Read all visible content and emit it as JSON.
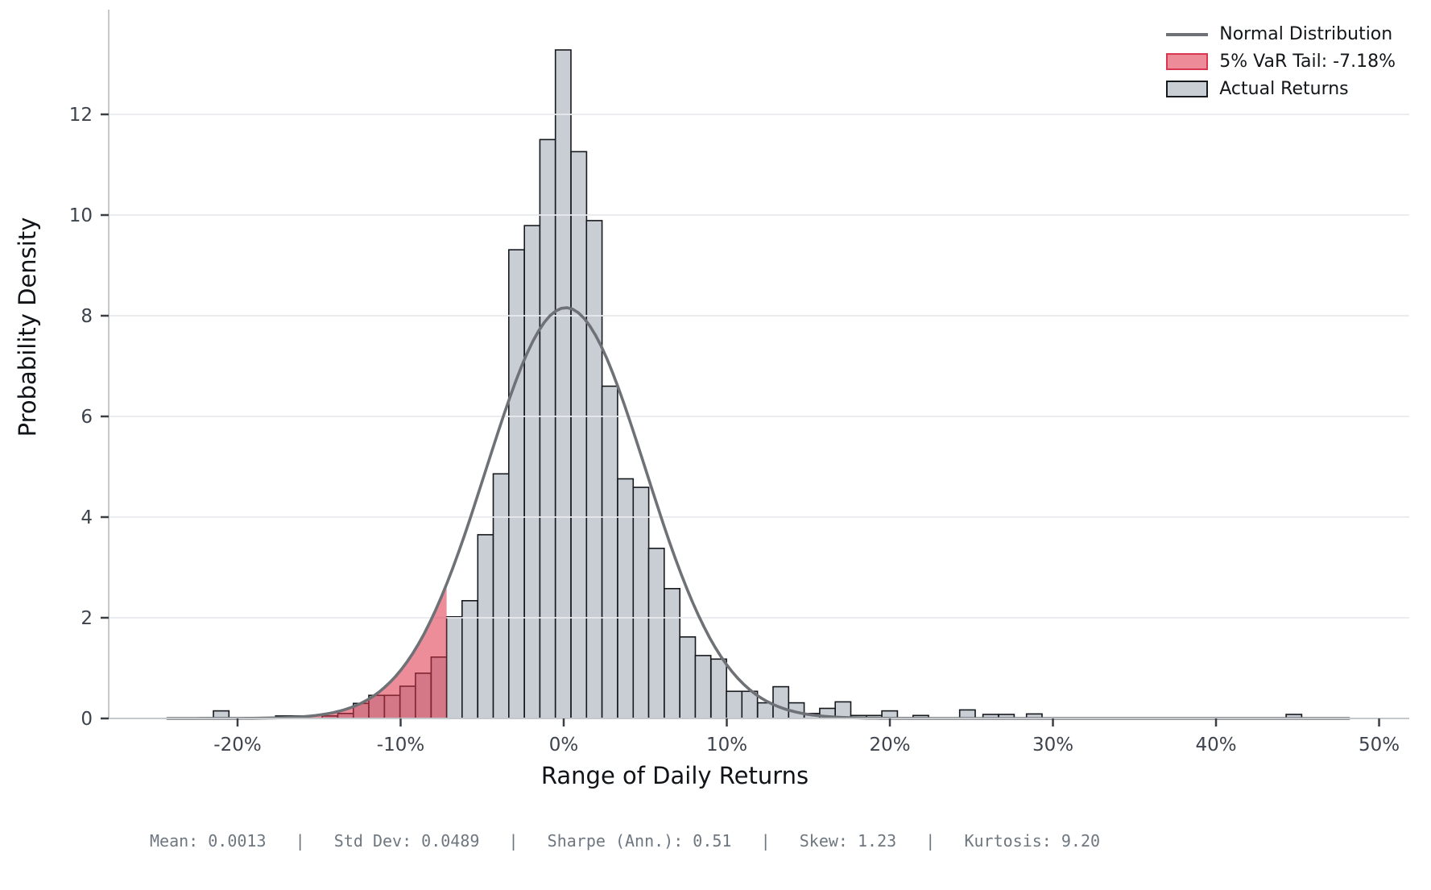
{
  "chart_data": {
    "type": "bar",
    "subtype": "histogram-with-normal-overlay",
    "xlabel": "Range of Daily Returns",
    "ylabel": "Probability Density",
    "x_unit": "percent",
    "xlim": [
      -27.9,
      51.85
    ],
    "ylim": [
      0,
      14.08
    ],
    "grid": "horizontal-only",
    "x_ticks": [
      {
        "value": -20,
        "label": "-20%"
      },
      {
        "value": -10,
        "label": "-10%"
      },
      {
        "value": 0,
        "label": "0%"
      },
      {
        "value": 10,
        "label": "10%"
      },
      {
        "value": 20,
        "label": "20%"
      },
      {
        "value": 30,
        "label": "30%"
      },
      {
        "value": 40,
        "label": "40%"
      },
      {
        "value": 50,
        "label": "50%"
      }
    ],
    "y_ticks": [
      {
        "value": 0,
        "label": "0"
      },
      {
        "value": 2,
        "label": "2"
      },
      {
        "value": 4,
        "label": "4"
      },
      {
        "value": 6,
        "label": "6"
      },
      {
        "value": 8,
        "label": "8"
      },
      {
        "value": 10,
        "label": "10"
      },
      {
        "value": 12,
        "label": "12"
      }
    ],
    "histogram": {
      "bin_width_pct": 0.953,
      "bars": [
        {
          "x": -21.48,
          "h": 0.15
        },
        {
          "x": -17.67,
          "h": 0.05
        },
        {
          "x": -16.71,
          "h": 0.05
        },
        {
          "x": -14.81,
          "h": 0.05
        },
        {
          "x": -13.85,
          "h": 0.1
        },
        {
          "x": -12.9,
          "h": 0.3
        },
        {
          "x": -11.95,
          "h": 0.46
        },
        {
          "x": -10.99,
          "h": 0.46
        },
        {
          "x": -10.04,
          "h": 0.64
        },
        {
          "x": -9.09,
          "h": 0.9
        },
        {
          "x": -8.13,
          "h": 1.22
        },
        {
          "x": -7.18,
          "h": 2.02
        },
        {
          "x": -6.23,
          "h": 2.34
        },
        {
          "x": -5.27,
          "h": 3.65
        },
        {
          "x": -4.32,
          "h": 4.86
        },
        {
          "x": -3.37,
          "h": 9.31
        },
        {
          "x": -2.41,
          "h": 9.79
        },
        {
          "x": -1.46,
          "h": 11.5
        },
        {
          "x": -0.51,
          "h": 13.28
        },
        {
          "x": 0.45,
          "h": 11.26
        },
        {
          "x": 1.4,
          "h": 9.89
        },
        {
          "x": 2.35,
          "h": 6.6
        },
        {
          "x": 3.31,
          "h": 4.76
        },
        {
          "x": 4.26,
          "h": 4.59
        },
        {
          "x": 5.21,
          "h": 3.38
        },
        {
          "x": 6.17,
          "h": 2.58
        },
        {
          "x": 7.12,
          "h": 1.62
        },
        {
          "x": 8.07,
          "h": 1.25
        },
        {
          "x": 9.03,
          "h": 1.18
        },
        {
          "x": 9.98,
          "h": 0.54
        },
        {
          "x": 10.93,
          "h": 0.54
        },
        {
          "x": 11.89,
          "h": 0.31
        },
        {
          "x": 12.84,
          "h": 0.63
        },
        {
          "x": 13.79,
          "h": 0.31
        },
        {
          "x": 14.75,
          "h": 0.1
        },
        {
          "x": 15.7,
          "h": 0.2
        },
        {
          "x": 16.65,
          "h": 0.33
        },
        {
          "x": 17.61,
          "h": 0.06
        },
        {
          "x": 18.56,
          "h": 0.06
        },
        {
          "x": 19.51,
          "h": 0.15
        },
        {
          "x": 21.42,
          "h": 0.06
        },
        {
          "x": 24.28,
          "h": 0.17
        },
        {
          "x": 25.71,
          "h": 0.08
        },
        {
          "x": 26.67,
          "h": 0.08
        },
        {
          "x": 28.38,
          "h": 0.09
        },
        {
          "x": 44.3,
          "h": 0.08
        }
      ]
    },
    "normal_curve": {
      "mean_pct": 0.13,
      "sigma_pct": 4.89,
      "peak_density": 8.16,
      "x_start_pct": -24.3,
      "x_end_pct": 48.5
    },
    "var_tail": {
      "threshold_pct": -7.18,
      "label": "5% VaR Tail: -7.18%"
    },
    "legend": [
      {
        "swatch": "line",
        "label": "Normal Distribution"
      },
      {
        "swatch": "red-patch",
        "label": "5% VaR Tail: -7.18%"
      },
      {
        "swatch": "gray-patch",
        "label": "Actual Returns"
      }
    ],
    "stats_line": "Mean: 0.0013   |   Std Dev: 0.0489   |   Sharpe (Ann.): 0.51   |   Skew: 1.23   |   Kurtosis: 9.20"
  },
  "colors": {
    "background": "#ffffff",
    "bar_fill": "#c9ced5",
    "bar_edge": "#16191d",
    "curve": "#6e7176",
    "var_fill": "#dc2f45",
    "var_fill_opacity": 0.55,
    "legend_red_fill": "#ee8b99",
    "legend_red_edge": "#d8374f",
    "grid": "#e8eaed",
    "spine": "#c6c9cc",
    "tick_mark": "#3a3f46",
    "tick_label": "#3d434c",
    "axis_label": "#101418",
    "stats_text": "#6e7780",
    "legend_text": "#14171a"
  }
}
